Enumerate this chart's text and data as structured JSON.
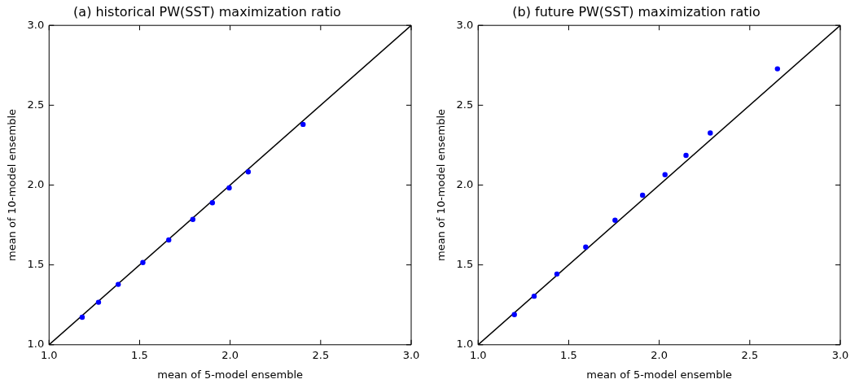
{
  "chart_data": [
    {
      "type": "scatter",
      "title": "(a) historical PW(SST) maximization ratio",
      "xlabel": "mean of 5-model ensemble",
      "ylabel": "mean of 10-model ensemble",
      "xlim": [
        1,
        3
      ],
      "ylim": [
        1,
        3
      ],
      "xticks": [
        {
          "value": 1,
          "label": "1.0"
        },
        {
          "value": 1.5,
          "label": "1.5"
        },
        {
          "value": 2,
          "label": "2.0"
        },
        {
          "value": 2.5,
          "label": "2.5"
        },
        {
          "value": 3,
          "label": "3.0"
        }
      ],
      "yticks": [
        {
          "value": 1,
          "label": "1.0"
        },
        {
          "value": 1.5,
          "label": "1.5"
        },
        {
          "value": 2,
          "label": "2.0"
        },
        {
          "value": 2.5,
          "label": "2.5"
        },
        {
          "value": 3,
          "label": "3.0"
        }
      ],
      "grid": false,
      "legend": false,
      "marker": "circle",
      "series": [
        {
          "type": "line",
          "color": "#000000",
          "x": [
            1,
            3
          ],
          "values": [
            1,
            3
          ],
          "marker": "none",
          "line_style": "solid"
        },
        {
          "color": "#0000ff",
          "x": [
            1.183,
            1.273,
            1.382,
            1.518,
            1.661,
            1.794,
            1.902,
            1.995,
            2.1,
            2.403
          ],
          "values": [
            1.172,
            1.266,
            1.378,
            1.515,
            1.656,
            1.785,
            1.889,
            1.982,
            2.083,
            2.38
          ]
        }
      ]
    },
    {
      "type": "scatter",
      "title": "(b) future PW(SST) maximization ratio",
      "xlabel": "mean of 5-model ensemble",
      "ylabel": "mean of 10-model ensemble",
      "xlim": [
        1,
        3
      ],
      "ylim": [
        1,
        3
      ],
      "xticks": [
        {
          "value": 1,
          "label": "1.0"
        },
        {
          "value": 1.5,
          "label": "1.5"
        },
        {
          "value": 2,
          "label": "2.0"
        },
        {
          "value": 2.5,
          "label": "2.5"
        },
        {
          "value": 3,
          "label": "3.0"
        }
      ],
      "yticks": [
        {
          "value": 1,
          "label": "1.0"
        },
        {
          "value": 1.5,
          "label": "1.5"
        },
        {
          "value": 2,
          "label": "2.0"
        },
        {
          "value": 2.5,
          "label": "2.5"
        },
        {
          "value": 3,
          "label": "3.0"
        }
      ],
      "grid": false,
      "legend": false,
      "marker": "circle",
      "series": [
        {
          "type": "line",
          "color": "#000000",
          "x": [
            1,
            3
          ],
          "values": [
            1,
            3
          ],
          "marker": "none",
          "line_style": "solid"
        },
        {
          "color": "#0000ff",
          "x": [
            1.2,
            1.309,
            1.435,
            1.594,
            1.756,
            1.908,
            2.032,
            2.148,
            2.282,
            2.653
          ],
          "values": [
            1.189,
            1.304,
            1.443,
            1.612,
            1.78,
            1.936,
            2.065,
            2.186,
            2.326,
            2.728
          ]
        }
      ]
    }
  ]
}
